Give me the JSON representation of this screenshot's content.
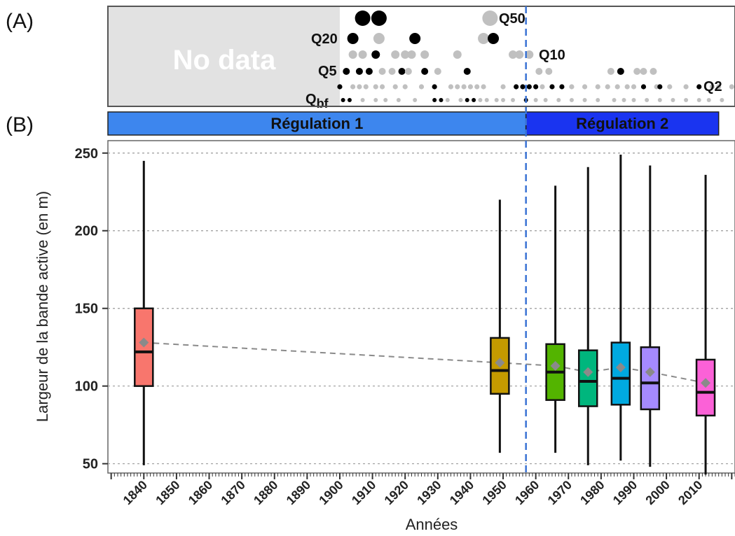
{
  "panel_labels": {
    "a": "(A)",
    "b": "(B)"
  },
  "colors": {
    "regulation_1": "#3d86ee",
    "regulation_2": "#1a34f0",
    "nodata_fill": "#e2e2e2",
    "event_black": "#000000",
    "event_grey": "#c0c0c0",
    "mean_marker": "#8a8a8a"
  },
  "flood_panel": {
    "no_data_label": "No data",
    "no_data_until_year": 1900,
    "class_labels": [
      "Q50",
      "Q20",
      "Q10",
      "Q5",
      "Q2",
      "Qbf"
    ],
    "rows": [
      {
        "label": "Q50",
        "events": [
          {
            "year": 1907,
            "c": "black"
          },
          {
            "year": 1912,
            "c": "black"
          },
          {
            "year": 1946,
            "c": "grey"
          }
        ]
      },
      {
        "label": "Q20",
        "events": [
          {
            "year": 1904,
            "c": "black"
          },
          {
            "year": 1912,
            "c": "grey"
          },
          {
            "year": 1923,
            "c": "black"
          },
          {
            "year": 1944,
            "c": "grey"
          },
          {
            "year": 1947,
            "c": "black"
          }
        ]
      },
      {
        "label": "Q10",
        "events": [
          {
            "year": 1904,
            "c": "grey"
          },
          {
            "year": 1907,
            "c": "grey"
          },
          {
            "year": 1911,
            "c": "black"
          },
          {
            "year": 1917,
            "c": "grey"
          },
          {
            "year": 1920,
            "c": "grey"
          },
          {
            "year": 1922,
            "c": "grey"
          },
          {
            "year": 1926,
            "c": "grey"
          },
          {
            "year": 1936,
            "c": "grey"
          },
          {
            "year": 1953,
            "c": "grey"
          },
          {
            "year": 1955,
            "c": "grey"
          },
          {
            "year": 1958,
            "c": "grey"
          }
        ]
      },
      {
        "label": "Q5",
        "events": [
          {
            "year": 1902,
            "c": "black"
          },
          {
            "year": 1906,
            "c": "black"
          },
          {
            "year": 1909,
            "c": "black"
          },
          {
            "year": 1913,
            "c": "grey"
          },
          {
            "year": 1916,
            "c": "grey"
          },
          {
            "year": 1919,
            "c": "black"
          },
          {
            "year": 1921,
            "c": "grey"
          },
          {
            "year": 1926,
            "c": "black"
          },
          {
            "year": 1930,
            "c": "grey"
          },
          {
            "year": 1939,
            "c": "black"
          },
          {
            "year": 1961,
            "c": "grey"
          },
          {
            "year": 1964,
            "c": "grey"
          },
          {
            "year": 1983,
            "c": "grey"
          },
          {
            "year": 1986,
            "c": "black"
          },
          {
            "year": 1991,
            "c": "grey"
          },
          {
            "year": 1993,
            "c": "grey"
          },
          {
            "year": 1996,
            "c": "grey"
          }
        ]
      },
      {
        "label": "Q2",
        "events": [
          {
            "year": 1900,
            "c": "black"
          },
          {
            "year": 1904,
            "c": "grey"
          },
          {
            "year": 1906,
            "c": "grey"
          },
          {
            "year": 1908,
            "c": "grey"
          },
          {
            "year": 1911,
            "c": "grey"
          },
          {
            "year": 1913,
            "c": "grey"
          },
          {
            "year": 1917,
            "c": "grey"
          },
          {
            "year": 1920,
            "c": "grey"
          },
          {
            "year": 1925,
            "c": "grey"
          },
          {
            "year": 1929,
            "c": "black"
          },
          {
            "year": 1934,
            "c": "grey"
          },
          {
            "year": 1936,
            "c": "grey"
          },
          {
            "year": 1938,
            "c": "grey"
          },
          {
            "year": 1940,
            "c": "grey"
          },
          {
            "year": 1942,
            "c": "grey"
          },
          {
            "year": 1944,
            "c": "grey"
          },
          {
            "year": 1950,
            "c": "grey"
          },
          {
            "year": 1954,
            "c": "black"
          },
          {
            "year": 1956,
            "c": "black"
          },
          {
            "year": 1958,
            "c": "black"
          },
          {
            "year": 1960,
            "c": "black"
          },
          {
            "year": 1962,
            "c": "grey"
          },
          {
            "year": 1965,
            "c": "black"
          },
          {
            "year": 1968,
            "c": "black"
          },
          {
            "year": 1971,
            "c": "grey"
          },
          {
            "year": 1975,
            "c": "grey"
          },
          {
            "year": 1979,
            "c": "grey"
          },
          {
            "year": 1982,
            "c": "grey"
          },
          {
            "year": 1985,
            "c": "grey"
          },
          {
            "year": 1988,
            "c": "grey"
          },
          {
            "year": 1990,
            "c": "grey"
          },
          {
            "year": 1993,
            "c": "black"
          },
          {
            "year": 1997,
            "c": "grey"
          },
          {
            "year": 1998,
            "c": "black"
          },
          {
            "year": 2001,
            "c": "grey"
          },
          {
            "year": 2006,
            "c": "grey"
          },
          {
            "year": 2010,
            "c": "black"
          },
          {
            "year": 2014,
            "c": "grey"
          },
          {
            "year": 2016,
            "c": "grey"
          },
          {
            "year": 2020,
            "c": "grey"
          }
        ]
      },
      {
        "label": "Qbf",
        "events": [
          {
            "year": 1901,
            "c": "black"
          },
          {
            "year": 1903,
            "c": "black"
          },
          {
            "year": 1907,
            "c": "grey"
          },
          {
            "year": 1911,
            "c": "grey"
          },
          {
            "year": 1914,
            "c": "grey"
          },
          {
            "year": 1918,
            "c": "grey"
          },
          {
            "year": 1923,
            "c": "grey"
          },
          {
            "year": 1929,
            "c": "black"
          },
          {
            "year": 1931,
            "c": "black"
          },
          {
            "year": 1933,
            "c": "grey"
          },
          {
            "year": 1937,
            "c": "grey"
          },
          {
            "year": 1939,
            "c": "black"
          },
          {
            "year": 1941,
            "c": "black"
          },
          {
            "year": 1943,
            "c": "grey"
          },
          {
            "year": 1945,
            "c": "grey"
          },
          {
            "year": 1948,
            "c": "grey"
          },
          {
            "year": 1950,
            "c": "grey"
          },
          {
            "year": 1953,
            "c": "grey"
          },
          {
            "year": 1957,
            "c": "black"
          },
          {
            "year": 1960,
            "c": "grey"
          },
          {
            "year": 1963,
            "c": "grey"
          },
          {
            "year": 1967,
            "c": "grey"
          },
          {
            "year": 1971,
            "c": "grey"
          },
          {
            "year": 1975,
            "c": "grey"
          },
          {
            "year": 1979,
            "c": "grey"
          },
          {
            "year": 1984,
            "c": "grey"
          },
          {
            "year": 1987,
            "c": "grey"
          },
          {
            "year": 1990,
            "c": "grey"
          },
          {
            "year": 1994,
            "c": "grey"
          },
          {
            "year": 1998,
            "c": "grey"
          },
          {
            "year": 2002,
            "c": "grey"
          },
          {
            "year": 2006,
            "c": "grey"
          },
          {
            "year": 2010,
            "c": "grey"
          },
          {
            "year": 2013,
            "c": "grey"
          },
          {
            "year": 2017,
            "c": "grey"
          }
        ]
      }
    ]
  },
  "regulation": [
    {
      "label": "Régulation 1",
      "from": 1826,
      "to": 1957,
      "color": "#3d86ee"
    },
    {
      "label": "Régulation 2",
      "from": 1957,
      "to": 2016,
      "color": "#1a34f0"
    }
  ],
  "chart_data": {
    "type": "box",
    "title": "",
    "xlabel": "Années",
    "ylabel": "Largeur de la bande active (en m)",
    "xlim": [
      1829,
      2021
    ],
    "ylim": [
      44,
      258
    ],
    "xticks": [
      1840,
      1850,
      1860,
      1870,
      1880,
      1890,
      1900,
      1910,
      1920,
      1930,
      1940,
      1950,
      1960,
      1970,
      1980,
      1990,
      2000,
      2010
    ],
    "yticks": [
      50,
      100,
      150,
      200,
      250
    ],
    "grid": "horizontal dotted",
    "regime_change_year": 1957,
    "boxes": [
      {
        "year": 1840,
        "min": 49,
        "q1": 100,
        "median": 122,
        "q3": 150,
        "max": 245,
        "mean": 128,
        "color": "#f8766d"
      },
      {
        "year": 1949,
        "min": 57,
        "q1": 95,
        "median": 110,
        "q3": 131,
        "max": 220,
        "mean": 115,
        "color": "#c49a00"
      },
      {
        "year": 1966,
        "min": 57,
        "q1": 91,
        "median": 109,
        "q3": 127,
        "max": 229,
        "mean": 113,
        "color": "#53b400"
      },
      {
        "year": 1976,
        "min": 49,
        "q1": 87,
        "median": 103,
        "q3": 123,
        "max": 241,
        "mean": 109,
        "color": "#00b67d"
      },
      {
        "year": 1986,
        "min": 52,
        "q1": 88,
        "median": 105,
        "q3": 128,
        "max": 249,
        "mean": 112,
        "color": "#00a9e0"
      },
      {
        "year": 1995,
        "min": 48,
        "q1": 85,
        "median": 102,
        "q3": 125,
        "max": 242,
        "mean": 109,
        "color": "#a58aff"
      },
      {
        "year": 2012,
        "min": 43,
        "q1": 81,
        "median": 96,
        "q3": 117,
        "max": 236,
        "mean": 102,
        "color": "#fb61d7"
      }
    ]
  }
}
